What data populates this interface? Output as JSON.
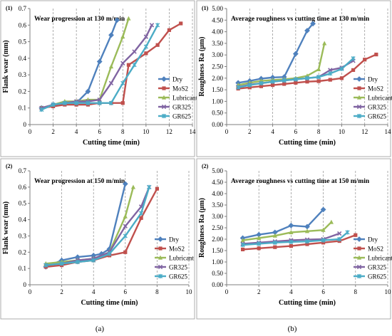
{
  "colors": {
    "Dry": "#4F81BD",
    "MoS2": "#C0504D",
    "Lubricant": "#9BBB59",
    "GR325": "#8064A2",
    "GR625": "#4BACC6"
  },
  "column_labels": [
    "(a)",
    "(b)"
  ],
  "chart_data": [
    {
      "type": "line",
      "panel_label": "(1)",
      "title": "Wear progression at 130 m/min",
      "xlabel": "Cutting time (min)",
      "ylabel": "Flank wear (mm)",
      "xlim": [
        0,
        14
      ],
      "ylim": [
        0,
        0.7
      ],
      "xticks": [
        0,
        2,
        4,
        6,
        8,
        10,
        12,
        14
      ],
      "xtick_labels": [
        "0",
        "2",
        "4",
        "6",
        "8",
        "10",
        "12",
        "14"
      ],
      "yticks": [
        0,
        0.1,
        0.2,
        0.3,
        0.4,
        0.5,
        0.6,
        0.7
      ],
      "ytick_labels": [
        "0",
        "0.1",
        "0.2",
        "0.3",
        "0.4",
        "0.5",
        "0.6",
        "0.7"
      ],
      "grid": "vertical-dashed",
      "legend": "right",
      "series": [
        {
          "name": "Dry",
          "x": [
            1,
            2,
            3,
            4,
            5,
            6,
            7,
            7.5
          ],
          "y": [
            0.1,
            0.12,
            0.13,
            0.13,
            0.2,
            0.38,
            0.54,
            0.63
          ]
        },
        {
          "name": "MoS2",
          "x": [
            1,
            2,
            3,
            4,
            5,
            6,
            7,
            8,
            8.5,
            10,
            11,
            12,
            13
          ],
          "y": [
            0.1,
            0.11,
            0.12,
            0.12,
            0.12,
            0.13,
            0.13,
            0.13,
            0.36,
            0.43,
            0.48,
            0.57,
            0.61
          ]
        },
        {
          "name": "Lubricant",
          "x": [
            1,
            2,
            3,
            4,
            5,
            6,
            7,
            8,
            8.5
          ],
          "y": [
            0.1,
            0.12,
            0.14,
            0.14,
            0.15,
            0.15,
            0.35,
            0.53,
            0.64
          ]
        },
        {
          "name": "GR325",
          "x": [
            1,
            2,
            3,
            4,
            5,
            6,
            7,
            8,
            9,
            10,
            10.5
          ],
          "y": [
            0.1,
            0.12,
            0.13,
            0.14,
            0.14,
            0.15,
            0.25,
            0.37,
            0.44,
            0.53,
            0.6
          ]
        },
        {
          "name": "GR625",
          "x": [
            1,
            2,
            3,
            4,
            5,
            6,
            7,
            8,
            9,
            10,
            11
          ],
          "y": [
            0.09,
            0.12,
            0.13,
            0.13,
            0.13,
            0.13,
            0.13,
            0.25,
            0.36,
            0.47,
            0.6
          ]
        }
      ]
    },
    {
      "type": "line",
      "panel_label": "(1)",
      "title": "Average roughness vs cutting time at 130 m/min",
      "xlabel": "Cutting time (min)",
      "ylabel": "Roughness Ra (μm)",
      "xlim": [
        0,
        14
      ],
      "ylim": [
        0,
        5
      ],
      "xticks": [
        0,
        2,
        4,
        6,
        8,
        10,
        12,
        14
      ],
      "xtick_labels": [
        "0",
        "2",
        "4",
        "6",
        "8",
        "10",
        "12",
        "14"
      ],
      "yticks": [
        0,
        0.5,
        1,
        1.5,
        2,
        2.5,
        3,
        3.5,
        4,
        4.5,
        5
      ],
      "ytick_labels": [
        "0.00",
        "0.50",
        "1.00",
        "1.50",
        "2.00",
        "2.50",
        "3.00",
        "3.50",
        "4.00",
        "4.50",
        "5.00"
      ],
      "grid": "vertical-dashed",
      "legend": "right",
      "series": [
        {
          "name": "Dry",
          "x": [
            1,
            2,
            3,
            4,
            5,
            6,
            7,
            7.5
          ],
          "y": [
            1.8,
            1.88,
            1.98,
            2.03,
            2.05,
            3.05,
            4.05,
            4.35
          ]
        },
        {
          "name": "MoS2",
          "x": [
            1,
            2,
            3,
            4,
            5,
            6,
            7,
            8,
            9,
            10,
            11,
            12,
            13
          ],
          "y": [
            1.55,
            1.6,
            1.65,
            1.7,
            1.75,
            1.8,
            1.85,
            1.87,
            1.93,
            2.0,
            2.35,
            2.8,
            3.02
          ]
        },
        {
          "name": "Lubricant",
          "x": [
            1,
            2,
            3,
            4,
            5,
            6,
            7,
            8,
            8.5
          ],
          "y": [
            1.7,
            1.8,
            1.88,
            1.92,
            1.95,
            2.0,
            2.1,
            2.38,
            3.5
          ]
        },
        {
          "name": "GR325",
          "x": [
            1,
            2,
            3,
            4,
            5,
            6,
            7,
            8,
            9,
            10,
            11
          ],
          "y": [
            1.62,
            1.72,
            1.78,
            1.85,
            1.9,
            1.95,
            2.0,
            2.05,
            2.35,
            2.45,
            2.75
          ]
        },
        {
          "name": "GR625",
          "x": [
            1,
            2,
            3,
            4,
            5,
            6,
            7,
            8,
            9,
            10,
            11
          ],
          "y": [
            1.6,
            1.7,
            1.78,
            1.85,
            1.9,
            1.95,
            2.0,
            2.05,
            2.2,
            2.4,
            2.85
          ]
        }
      ]
    },
    {
      "type": "line",
      "panel_label": "(2)",
      "title": "Wear progression at 150 m/min",
      "xlabel": "Cutting time (min)",
      "ylabel": "Flank wear (mm)",
      "xlim": [
        0,
        10
      ],
      "ylim": [
        0,
        0.7
      ],
      "xticks": [
        0,
        2,
        4,
        6,
        8,
        10
      ],
      "xtick_labels": [
        "0",
        "2",
        "4",
        "6",
        "8",
        "10"
      ],
      "yticks": [
        0,
        0.1,
        0.2,
        0.3,
        0.4,
        0.5,
        0.6,
        0.7
      ],
      "ytick_labels": [
        "0",
        "0.1",
        "0.2",
        "0.3",
        "0.4",
        "0.5",
        "0.6",
        "0.7"
      ],
      "grid": "vertical-dashed",
      "legend": "right",
      "series": [
        {
          "name": "Dry",
          "x": [
            1,
            2,
            3,
            4,
            4.5,
            5,
            6
          ],
          "y": [
            0.11,
            0.15,
            0.17,
            0.18,
            0.19,
            0.22,
            0.62
          ]
        },
        {
          "name": "MoS2",
          "x": [
            1,
            2,
            3,
            4,
            5,
            6,
            7,
            8
          ],
          "y": [
            0.11,
            0.12,
            0.14,
            0.15,
            0.18,
            0.2,
            0.41,
            0.59
          ]
        },
        {
          "name": "Lubricant",
          "x": [
            1,
            2,
            3,
            4,
            5,
            6,
            6.5
          ],
          "y": [
            0.13,
            0.14,
            0.15,
            0.16,
            0.2,
            0.42,
            0.6
          ]
        },
        {
          "name": "GR325",
          "x": [
            1,
            2,
            3,
            4,
            5,
            6,
            7,
            7.5
          ],
          "y": [
            0.12,
            0.13,
            0.15,
            0.16,
            0.2,
            0.36,
            0.48,
            0.6
          ]
        },
        {
          "name": "GR625",
          "x": [
            1,
            2,
            3,
            4,
            5,
            6,
            7,
            7.5
          ],
          "y": [
            0.12,
            0.13,
            0.14,
            0.15,
            0.19,
            0.3,
            0.44,
            0.6
          ]
        }
      ]
    },
    {
      "type": "line",
      "panel_label": "(2)",
      "title": "Average roughness vs cutting time at 150 m/min",
      "xlabel": "Cutting time (min)",
      "ylabel": "Roughness Ra (μm)",
      "xlim": [
        0,
        10
      ],
      "ylim": [
        0,
        5
      ],
      "xticks": [
        0,
        2,
        4,
        6,
        8,
        10
      ],
      "xtick_labels": [
        "0",
        "2",
        "4",
        "6",
        "8",
        "10"
      ],
      "yticks": [
        0,
        0.5,
        1,
        1.5,
        2,
        2.5,
        3,
        3.5,
        4,
        4.5,
        5
      ],
      "ytick_labels": [
        "0.00",
        "0.50",
        "1.00",
        "1.50",
        "2.00",
        "2.50",
        "3.00",
        "3.50",
        "4.00",
        "4.50",
        "5.00"
      ],
      "grid": "vertical-dashed",
      "legend": "right",
      "series": [
        {
          "name": "Dry",
          "x": [
            1,
            2,
            3,
            4,
            5,
            6
          ],
          "y": [
            2.05,
            2.2,
            2.3,
            2.6,
            2.55,
            3.3
          ]
        },
        {
          "name": "MoS2",
          "x": [
            1,
            2,
            3,
            4,
            5,
            6,
            7,
            8
          ],
          "y": [
            1.55,
            1.6,
            1.65,
            1.7,
            1.78,
            1.85,
            1.92,
            2.18
          ]
        },
        {
          "name": "Lubricant",
          "x": [
            1,
            2,
            3,
            4,
            5,
            6,
            6.5
          ],
          "y": [
            1.95,
            2.05,
            2.15,
            2.3,
            2.35,
            2.4,
            2.75
          ]
        },
        {
          "name": "GR325",
          "x": [
            1,
            2,
            3,
            4,
            5,
            6,
            7
          ],
          "y": [
            1.8,
            1.85,
            1.9,
            1.95,
            1.98,
            2.0,
            2.25
          ]
        },
        {
          "name": "GR625",
          "x": [
            1,
            2,
            3,
            4,
            5,
            6,
            7,
            7.5
          ],
          "y": [
            1.75,
            1.8,
            1.85,
            1.88,
            1.9,
            1.95,
            2.0,
            2.3
          ]
        }
      ]
    }
  ]
}
